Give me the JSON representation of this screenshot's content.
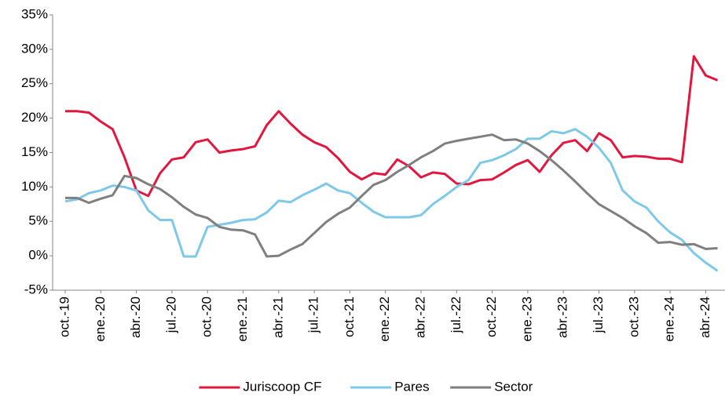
{
  "chart_data": {
    "type": "line",
    "categories": [
      "oct.-19",
      null,
      null,
      "ene.-20",
      null,
      null,
      "abr.-20",
      null,
      null,
      "jul.-20",
      null,
      null,
      "oct.-20",
      null,
      null,
      "ene.-21",
      null,
      null,
      "abr.-21",
      null,
      null,
      "jul.-21",
      null,
      null,
      "oct.-21",
      null,
      null,
      "ene.-22",
      null,
      null,
      "abr.-22",
      null,
      null,
      "jul.-22",
      null,
      null,
      "oct.-22",
      null,
      null,
      "ene.-23",
      null,
      null,
      "abr.-23",
      null,
      null,
      "jul.-23",
      null,
      null,
      "oct.-23",
      null,
      null,
      "ene.-24",
      null,
      null,
      "abr.-24",
      null
    ],
    "series": [
      {
        "name": "Juriscoop CF",
        "color": "#e3173e",
        "values": [
          21,
          21,
          20.8,
          19.5,
          18.4,
          14.3,
          9.5,
          8.7,
          12,
          14,
          14.3,
          16.5,
          16.9,
          15,
          15.3,
          15.5,
          15.9,
          19,
          21,
          19.2,
          17.6,
          16.5,
          15.8,
          14.2,
          12.2,
          11.1,
          12,
          11.8,
          14,
          13,
          11.4,
          12.1,
          11.9,
          10.5,
          10.4,
          11,
          11.1,
          12.1,
          13.2,
          13.9,
          12.2,
          14.6,
          16.4,
          16.8,
          15.2,
          17.8,
          16.8,
          14.3,
          14.5,
          14.4,
          14.1,
          14.1,
          13.6,
          29,
          26.2,
          25.5
        ]
      },
      {
        "name": "Pares",
        "color": "#7ec8e8",
        "values": [
          7.9,
          8.2,
          9.1,
          9.5,
          10.2,
          10,
          9.5,
          6.6,
          5.2,
          5.2,
          -0.1,
          -0.1,
          4.2,
          4.5,
          4.8,
          5.2,
          5.3,
          6.3,
          8,
          7.8,
          8.8,
          9.6,
          10.5,
          9.5,
          9.1,
          7.7,
          6.4,
          5.6,
          5.6,
          5.6,
          5.9,
          7.5,
          8.7,
          10,
          11,
          13.5,
          13.9,
          14.6,
          15.5,
          17,
          17,
          18.1,
          17.8,
          18.4,
          17.3,
          15.7,
          13.5,
          9.5,
          7.9,
          7,
          5,
          3.4,
          2.3,
          0.4,
          -1,
          -2.2
        ]
      },
      {
        "name": "Sector",
        "color": "#7f7f7f",
        "values": [
          8.4,
          8.4,
          7.7,
          8.3,
          8.8,
          11.6,
          11.3,
          10.4,
          9.7,
          8.5,
          7.1,
          6,
          5.5,
          4.2,
          3.8,
          3.7,
          3.1,
          -0.1,
          0,
          0.9,
          1.7,
          3.3,
          4.9,
          6.1,
          7,
          8.7,
          10.3,
          11,
          12.2,
          13.2,
          14.3,
          15.2,
          16.3,
          16.7,
          17,
          17.3,
          17.6,
          16.8,
          16.9,
          16.3,
          15.2,
          13.9,
          12.4,
          10.8,
          9.1,
          7.5,
          6.5,
          5.5,
          4.3,
          3.3,
          1.9,
          2,
          1.6,
          1.7,
          1,
          1.1
        ]
      }
    ],
    "ylim": [
      -5,
      35
    ],
    "yticks": [
      {
        "value": -5,
        "label": "-5%"
      },
      {
        "value": 0,
        "label": "0%"
      },
      {
        "value": 5,
        "label": "5%"
      },
      {
        "value": 10,
        "label": "10%"
      },
      {
        "value": 15,
        "label": "15%"
      },
      {
        "value": 20,
        "label": "20%"
      },
      {
        "value": 25,
        "label": "25%"
      },
      {
        "value": 30,
        "label": "30%"
      },
      {
        "value": 35,
        "label": "35%"
      }
    ],
    "grid": false,
    "legend": "bottom"
  }
}
